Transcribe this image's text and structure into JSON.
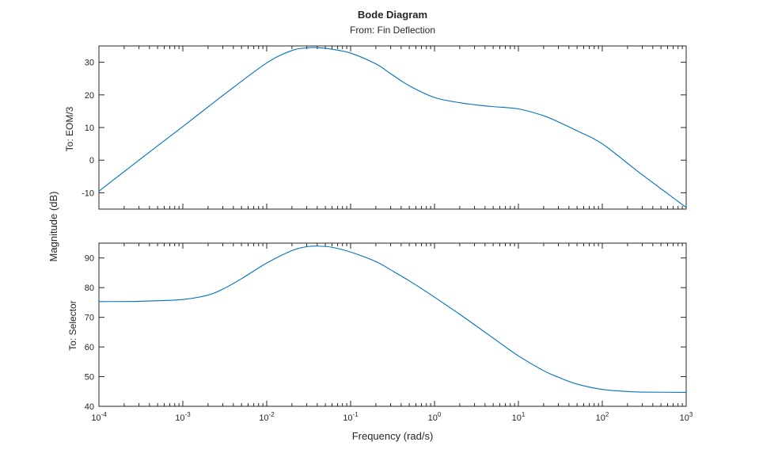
{
  "chart_data": {
    "type": "line",
    "title": "Bode Diagram",
    "subtitle": "From: Fin Deflection",
    "xlabel": "Frequency (rad/s)",
    "ylabel": "Magnitude (dB)",
    "xscale": "log",
    "xlim": [
      0.0001,
      1000
    ],
    "xticks": [
      {
        "base": "10",
        "exp": "-4"
      },
      {
        "base": "10",
        "exp": "-3"
      },
      {
        "base": "10",
        "exp": "-2"
      },
      {
        "base": "10",
        "exp": "-1"
      },
      {
        "base": "10",
        "exp": "0"
      },
      {
        "base": "10",
        "exp": "1"
      },
      {
        "base": "10",
        "exp": "2"
      },
      {
        "base": "10",
        "exp": "3"
      }
    ],
    "line_color": "#0072bd",
    "axes_color": "#262626",
    "panels": [
      {
        "row_label": "To: EOM/3",
        "ylim": [
          -15,
          35
        ],
        "yticks": [
          "-10",
          "0",
          "10",
          "20",
          "30"
        ],
        "series": [
          {
            "name": "To: EOM/3",
            "x": [
              0.0001,
              0.0003,
              0.001,
              0.003,
              0.01,
              0.02,
              0.03,
              0.04,
              0.06,
              0.1,
              0.2,
              0.3,
              0.5,
              1,
              2,
              3,
              5,
              10,
              20,
              30,
              50,
              100,
              300,
              1000
            ],
            "y": [
              -9.5,
              0,
              10.3,
              19.8,
              29.8,
              33.6,
              34.4,
              34.5,
              34.0,
              32.8,
              29.5,
              26.5,
              22.8,
              19.2,
              17.6,
              17.0,
              16.4,
              15.7,
              13.6,
              11.7,
              9.0,
              5.0,
              -4.5,
              -14.5
            ]
          }
        ]
      },
      {
        "row_label": "To: Selector",
        "ylim": [
          40,
          95
        ],
        "yticks": [
          "40",
          "50",
          "60",
          "70",
          "80",
          "90"
        ],
        "series": [
          {
            "name": "To: Selector",
            "x": [
              0.0001,
              0.0003,
              0.001,
              0.002,
              0.003,
              0.005,
              0.01,
              0.02,
              0.03,
              0.04,
              0.06,
              0.1,
              0.2,
              0.3,
              0.5,
              1,
              2,
              3,
              5,
              10,
              20,
              30,
              50,
              100,
              200,
              300,
              1000
            ],
            "y": [
              75.3,
              75.4,
              76.0,
              77.5,
              79.5,
              83.0,
              88.3,
              92.5,
              93.8,
              94.0,
              93.6,
              92.0,
              88.8,
              86.0,
              82.3,
              76.8,
              71.0,
              67.5,
              63.0,
              57.0,
              52.0,
              49.8,
              47.5,
              45.7,
              45.0,
              44.8,
              44.7
            ]
          }
        ]
      }
    ]
  }
}
